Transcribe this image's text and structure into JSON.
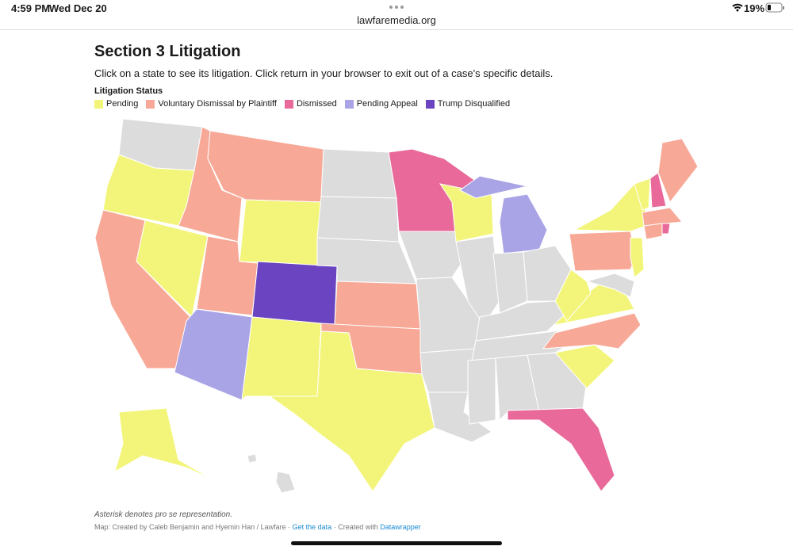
{
  "status_bar": {
    "time": "4:59 PM",
    "date": "Wed Dec 20",
    "url": "lawfaremedia.org",
    "battery": "19%"
  },
  "header": {
    "title": "Section 3 Litigation",
    "subtitle": "Click on a state to see its litigation. Click return in your browser to exit out of a case's specific details."
  },
  "legend": {
    "title": "Litigation Status",
    "items": [
      {
        "label": "Pending",
        "color": "#f3f57a"
      },
      {
        "label": "Voluntary Dismissal by Plaintiff",
        "color": "#f8a896"
      },
      {
        "label": "Dismissed",
        "color": "#e8699a"
      },
      {
        "label": "Pending Appeal",
        "color": "#a9a4e6"
      },
      {
        "label": "Trump Disqualified",
        "color": "#6b45c1"
      }
    ]
  },
  "footer": {
    "note": "Asterisk denotes pro se representation.",
    "credit": "Map: Created by Caleb Benjamin and Hyemin Han / Lawfare ·",
    "data_link": "Get the data",
    "created_with": "· Created with",
    "tool_link": "Datawrapper"
  }
}
